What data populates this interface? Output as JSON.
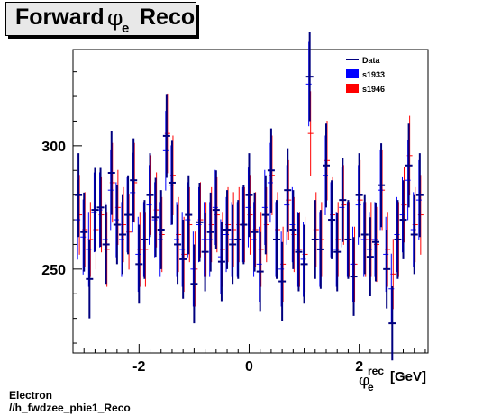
{
  "title": {
    "main": "Forward",
    "symbol": "φ",
    "subscript": "e",
    "suffix": "Reco"
  },
  "footer": {
    "line1": "Electron",
    "line2": "//h_fwdzee_phie1_Reco"
  },
  "colors": {
    "data": "#00007f",
    "s1933": "#0000ff",
    "s1946": "#ff0000",
    "axis": "#000000"
  },
  "chart_data": {
    "type": "scatter",
    "title": "Forward φe Reco",
    "xlabel": {
      "symbol": "φ",
      "sup": "rec",
      "sub": "e",
      "unit": "[GeV]"
    },
    "ylabel": "",
    "xlim": [
      -3.2,
      3.25
    ],
    "ylim": [
      216,
      339
    ],
    "xticks": [
      {
        "value": -2,
        "label": "-2"
      },
      {
        "value": 0,
        "label": "0"
      },
      {
        "value": 2,
        "label": "2"
      }
    ],
    "yticks": [
      {
        "value": 250,
        "label": "250"
      },
      {
        "value": 300,
        "label": "300"
      }
    ],
    "legend": {
      "position": "top-right",
      "entries": [
        {
          "label": "Data",
          "style": "line",
          "color": "#00007f"
        },
        {
          "label": "s1933",
          "style": "box",
          "color": "#0000ff"
        },
        {
          "label": "s1946",
          "style": "box",
          "color": "#ff0000"
        }
      ]
    },
    "series": [
      {
        "name": "Data",
        "x": [
          -3.1,
          -3.0,
          -2.9,
          -2.8,
          -2.7,
          -2.6,
          -2.5,
          -2.4,
          -2.3,
          -2.2,
          -2.1,
          -2.0,
          -1.9,
          -1.8,
          -1.7,
          -1.6,
          -1.5,
          -1.4,
          -1.3,
          -1.2,
          -1.1,
          -1.0,
          -0.9,
          -0.8,
          -0.7,
          -0.6,
          -0.5,
          -0.4,
          -0.3,
          -0.2,
          -0.1,
          0.0,
          0.1,
          0.2,
          0.3,
          0.4,
          0.5,
          0.6,
          0.7,
          0.8,
          0.9,
          1.0,
          1.1,
          1.2,
          1.3,
          1.4,
          1.5,
          1.6,
          1.7,
          1.8,
          1.9,
          2.0,
          2.1,
          2.2,
          2.3,
          2.4,
          2.5,
          2.6,
          2.7,
          2.8,
          2.9,
          3.0,
          3.1
        ],
        "y": [
          280,
          265,
          246,
          274,
          275,
          260,
          289,
          268,
          264,
          272,
          286,
          252,
          262,
          280,
          271,
          266,
          304,
          285,
          260,
          254,
          272,
          244,
          269,
          257,
          265,
          274,
          253,
          266,
          260,
          262,
          268,
          280,
          265,
          249,
          272,
          290,
          262,
          245,
          282,
          266,
          257,
          252,
          328,
          262,
          258,
          292,
          270,
          257,
          278,
          262,
          247,
          280,
          264,
          255,
          261,
          284,
          250,
          228,
          262,
          270,
          292,
          264,
          280
        ],
        "yerr": [
          17,
          16,
          16,
          17,
          16,
          16,
          17,
          16,
          16,
          16,
          17,
          16,
          16,
          17,
          16,
          16,
          17,
          17,
          16,
          16,
          16,
          16,
          16,
          16,
          16,
          16,
          16,
          16,
          16,
          16,
          16,
          17,
          16,
          16,
          16,
          17,
          16,
          16,
          17,
          16,
          16,
          16,
          18,
          16,
          16,
          17,
          16,
          16,
          17,
          16,
          16,
          17,
          16,
          16,
          16,
          17,
          16,
          15,
          16,
          16,
          17,
          16,
          17
        ]
      },
      {
        "name": "s1933",
        "x": [
          -3.1,
          -3.0,
          -2.9,
          -2.8,
          -2.7,
          -2.6,
          -2.5,
          -2.4,
          -2.3,
          -2.2,
          -2.1,
          -2.0,
          -1.9,
          -1.8,
          -1.7,
          -1.6,
          -1.5,
          -1.4,
          -1.3,
          -1.2,
          -1.1,
          -1.0,
          -0.9,
          -0.8,
          -0.7,
          -0.6,
          -0.5,
          -0.4,
          -0.3,
          -0.2,
          -0.1,
          0.0,
          0.1,
          0.2,
          0.3,
          0.4,
          0.5,
          0.6,
          0.7,
          0.8,
          0.9,
          1.0,
          1.1,
          1.2,
          1.3,
          1.4,
          1.5,
          1.6,
          1.7,
          1.8,
          1.9,
          2.0,
          2.1,
          2.2,
          2.3,
          2.4,
          2.5,
          2.6,
          2.7,
          2.8,
          2.9,
          3.0,
          3.1
        ],
        "y": [
          270,
          263,
          258,
          273,
          274,
          262,
          282,
          270,
          262,
          272,
          281,
          256,
          262,
          276,
          270,
          262,
          298,
          284,
          262,
          258,
          270,
          250,
          268,
          262,
          262,
          275,
          255,
          264,
          262,
          262,
          268,
          275,
          262,
          252,
          275,
          285,
          262,
          250,
          276,
          268,
          258,
          254,
          325,
          262,
          258,
          288,
          270,
          258,
          275,
          262,
          252,
          276,
          262,
          258,
          262,
          282,
          256,
          242,
          264,
          272,
          286,
          266,
          278
        ]
      },
      {
        "name": "s1946",
        "x": [
          -3.1,
          -3.0,
          -2.9,
          -2.8,
          -2.7,
          -2.6,
          -2.5,
          -2.4,
          -2.3,
          -2.2,
          -2.1,
          -2.0,
          -1.9,
          -1.8,
          -1.7,
          -1.6,
          -1.5,
          -1.4,
          -1.3,
          -1.2,
          -1.1,
          -1.0,
          -0.9,
          -0.8,
          -0.7,
          -0.6,
          -0.5,
          -0.4,
          -0.3,
          -0.2,
          -0.1,
          0.0,
          0.1,
          0.2,
          0.3,
          0.4,
          0.5,
          0.6,
          0.7,
          0.8,
          0.9,
          1.0,
          1.1,
          1.2,
          1.3,
          1.4,
          1.5,
          1.6,
          1.7,
          1.8,
          1.9,
          2.0,
          2.1,
          2.2,
          2.3,
          2.4,
          2.5,
          2.6,
          2.7,
          2.8,
          2.9,
          3.0,
          3.1
        ],
        "y": [
          272,
          266,
          262,
          266,
          272,
          258,
          285,
          275,
          268,
          265,
          285,
          258,
          258,
          280,
          274,
          264,
          305,
          288,
          264,
          256,
          268,
          250,
          270,
          262,
          268,
          272,
          258,
          268,
          266,
          268,
          268,
          272,
          266,
          258,
          268,
          288,
          266,
          252,
          278,
          264,
          258,
          256,
          305,
          266,
          262,
          294,
          272,
          262,
          276,
          262,
          252,
          278,
          262,
          262,
          260,
          282,
          258,
          248,
          262,
          276,
          296,
          268,
          272
        ]
      }
    ]
  }
}
